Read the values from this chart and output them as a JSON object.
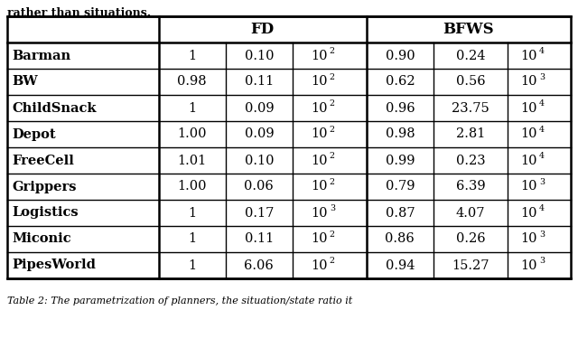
{
  "title_top": "rather than situations.",
  "caption": "Table 2: The parametrization of planners, the situation/state ratio it",
  "rows": [
    {
      "name": "Barman",
      "fd": [
        "1",
        "0.10",
        "10",
        "2"
      ],
      "bfws": [
        "0.90",
        "0.24",
        "10",
        "4"
      ]
    },
    {
      "name": "BW",
      "fd": [
        "0.98",
        "0.11",
        "10",
        "2"
      ],
      "bfws": [
        "0.62",
        "0.56",
        "10",
        "3"
      ]
    },
    {
      "name": "ChildSnack",
      "fd": [
        "1",
        "0.09",
        "10",
        "2"
      ],
      "bfws": [
        "0.96",
        "23.75",
        "10",
        "4"
      ]
    },
    {
      "name": "Depot",
      "fd": [
        "1.00",
        "0.09",
        "10",
        "2"
      ],
      "bfws": [
        "0.98",
        "2.81",
        "10",
        "4"
      ]
    },
    {
      "name": "FreeCell",
      "fd": [
        "1.01",
        "0.10",
        "10",
        "2"
      ],
      "bfws": [
        "0.99",
        "0.23",
        "10",
        "4"
      ]
    },
    {
      "name": "Grippers",
      "fd": [
        "1.00",
        "0.06",
        "10",
        "2"
      ],
      "bfws": [
        "0.79",
        "6.39",
        "10",
        "3"
      ]
    },
    {
      "name": "Logistics",
      "fd": [
        "1",
        "0.17",
        "10",
        "3"
      ],
      "bfws": [
        "0.87",
        "4.07",
        "10",
        "4"
      ]
    },
    {
      "name": "Miconic",
      "fd": [
        "1",
        "0.11",
        "10",
        "2"
      ],
      "bfws": [
        "0.86",
        "0.26",
        "10",
        "3"
      ]
    },
    {
      "name": "PipesWorld",
      "fd": [
        "1",
        "6.06",
        "10",
        "2"
      ],
      "bfws": [
        "0.94",
        "15.27",
        "10",
        "3"
      ]
    }
  ],
  "bg_color": "#ffffff",
  "text_color": "#000000",
  "line_color": "#000000",
  "font_size": 10.5,
  "header_font_size": 12,
  "title_font_size": 9,
  "caption_font_size": 8
}
